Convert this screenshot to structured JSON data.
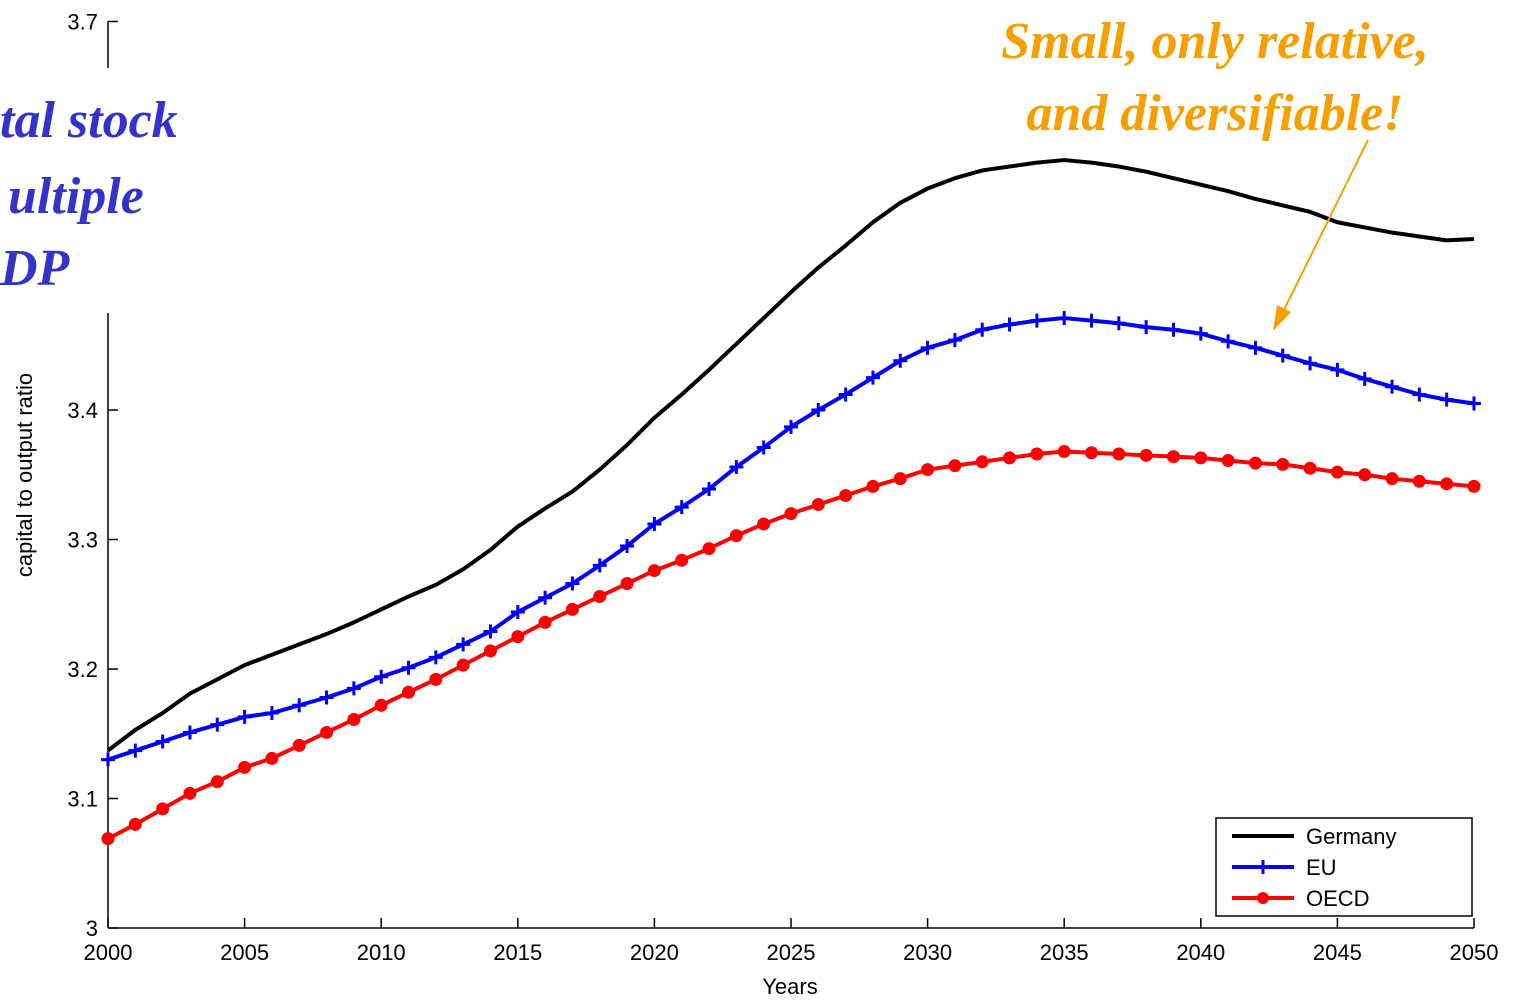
{
  "chart_data": {
    "type": "line",
    "x_label": "Years",
    "y_label": "capital to output ratio",
    "x": [
      2000,
      2001,
      2002,
      2003,
      2004,
      2005,
      2006,
      2007,
      2008,
      2009,
      2010,
      2011,
      2012,
      2013,
      2014,
      2015,
      2016,
      2017,
      2018,
      2019,
      2020,
      2021,
      2022,
      2023,
      2024,
      2025,
      2026,
      2027,
      2028,
      2029,
      2030,
      2031,
      2032,
      2033,
      2034,
      2035,
      2036,
      2037,
      2038,
      2039,
      2040,
      2041,
      2042,
      2043,
      2044,
      2045,
      2046,
      2047,
      2048,
      2049,
      2050
    ],
    "series": [
      {
        "name": "Germany",
        "color": "#000000",
        "marker": "none",
        "values": [
          3.137,
          3.153,
          3.166,
          3.181,
          3.192,
          3.203,
          3.211,
          3.219,
          3.227,
          3.236,
          3.246,
          3.256,
          3.265,
          3.277,
          3.292,
          3.31,
          3.324,
          3.337,
          3.354,
          3.373,
          3.394,
          3.412,
          3.431,
          3.451,
          3.471,
          3.491,
          3.51,
          3.527,
          3.545,
          3.56,
          3.571,
          3.579,
          3.585,
          3.588,
          3.591,
          3.593,
          3.591,
          3.588,
          3.584,
          3.579,
          3.574,
          3.569,
          3.563,
          3.558,
          3.553,
          3.545,
          3.541,
          3.537,
          3.534,
          3.531,
          3.532
        ]
      },
      {
        "name": "EU",
        "color": "#0000ff",
        "marker": "plus",
        "values": [
          3.13,
          3.137,
          3.144,
          3.151,
          3.157,
          3.163,
          3.166,
          3.172,
          3.178,
          3.185,
          3.194,
          3.201,
          3.209,
          3.219,
          3.229,
          3.244,
          3.255,
          3.266,
          3.28,
          3.295,
          3.312,
          3.325,
          3.339,
          3.356,
          3.371,
          3.387,
          3.4,
          3.412,
          3.425,
          3.438,
          3.448,
          3.454,
          3.462,
          3.466,
          3.469,
          3.471,
          3.469,
          3.467,
          3.464,
          3.462,
          3.459,
          3.453,
          3.448,
          3.442,
          3.436,
          3.431,
          3.424,
          3.418,
          3.412,
          3.408,
          3.405
        ]
      },
      {
        "name": "OECD",
        "color": "#ff0000",
        "marker": "circle",
        "values": [
          3.069,
          3.08,
          3.092,
          3.104,
          3.113,
          3.124,
          3.131,
          3.141,
          3.151,
          3.161,
          3.172,
          3.182,
          3.192,
          3.203,
          3.214,
          3.225,
          3.236,
          3.246,
          3.256,
          3.266,
          3.276,
          3.284,
          3.293,
          3.303,
          3.312,
          3.32,
          3.327,
          3.334,
          3.341,
          3.347,
          3.354,
          3.357,
          3.36,
          3.363,
          3.366,
          3.368,
          3.367,
          3.366,
          3.365,
          3.364,
          3.363,
          3.361,
          3.359,
          3.358,
          3.355,
          3.352,
          3.35,
          3.347,
          3.345,
          3.343,
          3.341
        ]
      }
    ],
    "xlim": [
      2000,
      2050
    ],
    "xticks": [
      2000,
      2005,
      2010,
      2015,
      2020,
      2025,
      2030,
      2035,
      2040,
      2045,
      2050
    ],
    "ylim": [
      3,
      3.7
    ],
    "yticks": [
      3,
      3.1,
      3.2,
      3.3,
      3.4,
      3.7
    ],
    "legend": "lower right",
    "annotation": {
      "color": "#f5a000",
      "lines": [
        "Small, only relative,",
        "and diversifiable!"
      ]
    },
    "overlay_text": {
      "color": "#3333cc",
      "lines": [
        "tal stock",
        "ultiple",
        "DP"
      ]
    }
  }
}
